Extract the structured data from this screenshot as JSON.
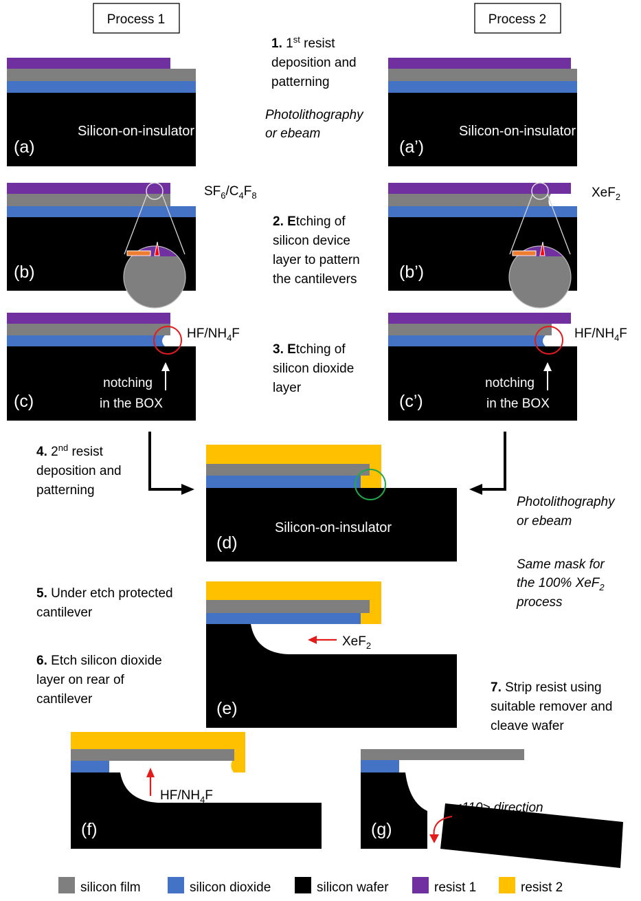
{
  "headers": {
    "process1": "Process 1",
    "process2": "Process 2"
  },
  "steps": {
    "s1": {
      "num": "1.",
      "lines": [
        "1st resist",
        "deposition and",
        "patterning"
      ],
      "method": [
        "Photolithography",
        "or ebeam"
      ]
    },
    "s2": {
      "num": "2.",
      "lines": [
        "Etching of",
        "silicon device",
        "layer to pattern",
        "the cantilevers"
      ]
    },
    "s3": {
      "num": "3.",
      "lines": [
        "Etching of",
        "silicon dioxide",
        "layer"
      ]
    },
    "s4": {
      "num": "4.",
      "lines": [
        "2nd resist",
        "deposition and",
        "patterning"
      ],
      "method": [
        "Photolithography",
        "or ebeam"
      ],
      "note": [
        "Same mask for",
        "the 100% XeF2",
        "process"
      ]
    },
    "s5": {
      "num": "5.",
      "lines": [
        "Under etch protected",
        "cantilever"
      ]
    },
    "s6": {
      "num": "6.",
      "lines": [
        "Etch silicon dioxide",
        "layer on rear of",
        "cantilever"
      ]
    },
    "s7": {
      "num": "7.",
      "lines": [
        "Strip resist using",
        "suitable remover and",
        "cleave wafer"
      ]
    }
  },
  "panels": {
    "a": "(a)",
    "a2": "(a’)",
    "b": "(b)",
    "b2": "(b’)",
    "c": "(c)",
    "c2": "(c’)",
    "d": "(d)",
    "e": "(e)",
    "f": "(f)",
    "g": "(g)"
  },
  "labels": {
    "soi": "Silicon-on-insulator",
    "sf6": "SF6/C4F8",
    "xef2": "XeF2",
    "hf": "HF/NH4F",
    "notching1": "notching",
    "notching2": "in the BOX",
    "direction": "<110> direction"
  },
  "legend": [
    {
      "label": "silicon film",
      "color": "#7f7f7f"
    },
    {
      "label": "silicon dioxide",
      "color": "#4472c4"
    },
    {
      "label": "silicon wafer",
      "color": "#000000"
    },
    {
      "label": "resist 1",
      "color": "#7030a0"
    },
    {
      "label": "resist 2",
      "color": "#ffc000"
    }
  ],
  "colors": {
    "silicon_film": "#7f7f7f",
    "silicon_dioxide": "#4472c4",
    "silicon_wafer": "#000000",
    "resist1": "#7030a0",
    "resist2": "#ffc000",
    "etch_arrow": "#e31b1b",
    "notch_circle": "#e31b1b",
    "protected_circle": "#22a84a"
  }
}
